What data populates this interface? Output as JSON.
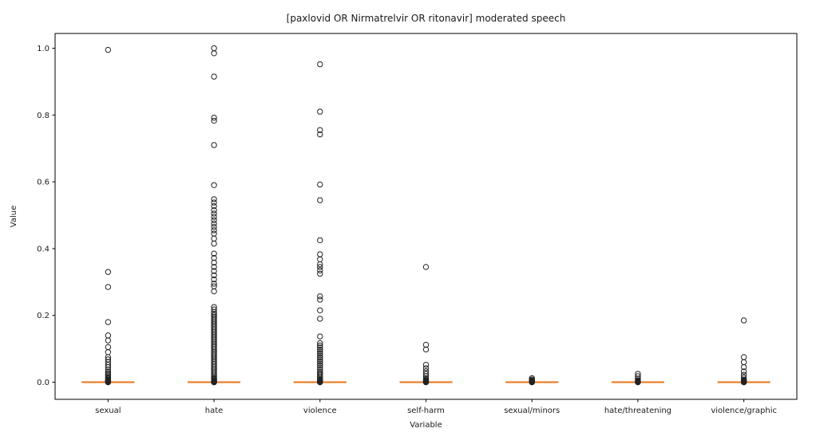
{
  "figure": {
    "title": "[paxlovid OR Nirmatrelvir OR ritonavir] moderated speech"
  },
  "chart_data": {
    "type": "scatter",
    "style": "boxplot-with-outlier-fliers",
    "title": "[paxlovid OR Nirmatrelvir OR ritonavir] moderated speech",
    "xlabel": "Variable",
    "ylabel": "Value",
    "ylim": [
      -0.05,
      1.05
    ],
    "grid": false,
    "legend": "none",
    "yticks": [
      0.0,
      0.2,
      0.4,
      0.6,
      0.8,
      1.0
    ],
    "yticklabels": [
      "0.0",
      "0.2",
      "0.4",
      "0.6",
      "0.8",
      "1.0"
    ],
    "categories": [
      "sexual",
      "hate",
      "violence",
      "self-harm",
      "sexual/minors",
      "hate/threatening",
      "violence/graphic"
    ],
    "medians": [
      0,
      0,
      0,
      0,
      0,
      0,
      0
    ],
    "median_color": "#e8812f",
    "marker_edge_color": "#222222",
    "series": [
      {
        "name": "sexual",
        "median": 0,
        "outliers": [
          0.995,
          0.33,
          0.285,
          0.18,
          0.14,
          0.125,
          0.105,
          0.09,
          0.075,
          0.068,
          0.06,
          0.052,
          0.045,
          0.038,
          0.032,
          0.027,
          0.022,
          0.018,
          0.014,
          0.011,
          0.008,
          0.006,
          0.004,
          0.003,
          0.002,
          0.001,
          0,
          0
        ]
      },
      {
        "name": "hate",
        "median": 0,
        "outliers": [
          1.0,
          0.985,
          0.915,
          0.792,
          0.783,
          0.71,
          0.59,
          0.548,
          0.538,
          0.527,
          0.515,
          0.505,
          0.495,
          0.485,
          0.475,
          0.465,
          0.455,
          0.445,
          0.43,
          0.415,
          0.385,
          0.372,
          0.358,
          0.345,
          0.333,
          0.32,
          0.308,
          0.295,
          0.287,
          0.272,
          0.225,
          0.218,
          0.21,
          0.205,
          0.2,
          0.195,
          0.19,
          0.185,
          0.18,
          0.175,
          0.17,
          0.165,
          0.16,
          0.155,
          0.15,
          0.145,
          0.14,
          0.135,
          0.13,
          0.125,
          0.12,
          0.115,
          0.11,
          0.105,
          0.1,
          0.095,
          0.09,
          0.085,
          0.08,
          0.075,
          0.07,
          0.065,
          0.06,
          0.055,
          0.05,
          0.045,
          0.04,
          0.035,
          0.03,
          0.025,
          0.02,
          0.016,
          0.012,
          0.009,
          0.006,
          0.004,
          0.003,
          0.002,
          0.001,
          0,
          0,
          0
        ]
      },
      {
        "name": "violence",
        "median": 0,
        "outliers": [
          0.952,
          0.81,
          0.755,
          0.742,
          0.592,
          0.545,
          0.425,
          0.383,
          0.368,
          0.353,
          0.345,
          0.335,
          0.325,
          0.257,
          0.247,
          0.215,
          0.19,
          0.137,
          0.117,
          0.11,
          0.104,
          0.098,
          0.092,
          0.086,
          0.08,
          0.074,
          0.068,
          0.062,
          0.056,
          0.05,
          0.044,
          0.038,
          0.032,
          0.027,
          0.022,
          0.017,
          0.013,
          0.009,
          0.006,
          0.004,
          0.002,
          0.001,
          0,
          0
        ]
      },
      {
        "name": "self-harm",
        "median": 0,
        "outliers": [
          0.345,
          0.112,
          0.098,
          0.052,
          0.042,
          0.033,
          0.025,
          0.018,
          0.012,
          0.008,
          0.005,
          0.003,
          0.002,
          0.001,
          0,
          0
        ]
      },
      {
        "name": "sexual/minors",
        "median": 0,
        "outliers": [
          0.012,
          0.008,
          0.005,
          0.003,
          0.002,
          0.001,
          0,
          0
        ]
      },
      {
        "name": "hate/threatening",
        "median": 0,
        "outliers": [
          0.025,
          0.018,
          0.011,
          0.006,
          0.004,
          0.002,
          0.001,
          0,
          0
        ]
      },
      {
        "name": "violence/graphic",
        "median": 0,
        "outliers": [
          0.185,
          0.075,
          0.06,
          0.045,
          0.032,
          0.022,
          0.014,
          0.008,
          0.005,
          0.003,
          0.001,
          0,
          0
        ]
      }
    ]
  }
}
